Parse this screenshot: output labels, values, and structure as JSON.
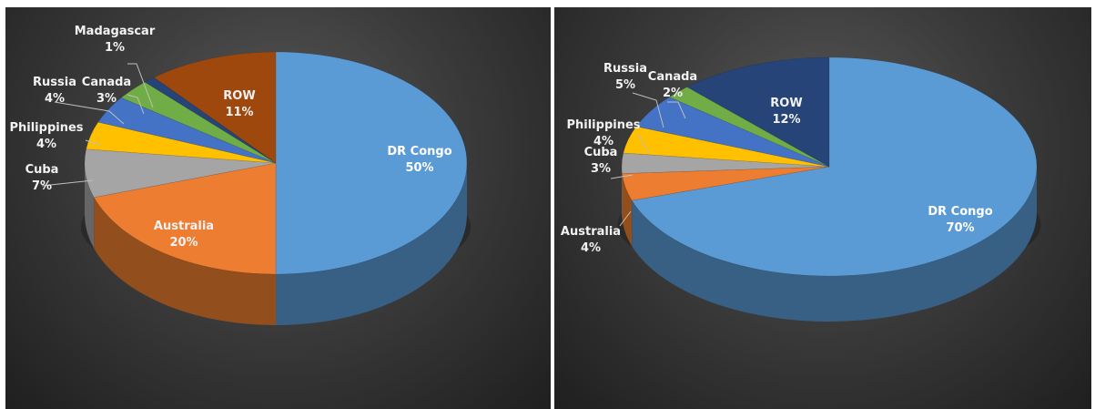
{
  "chart_data": [
    {
      "type": "pie",
      "style": "3d",
      "slices": [
        {
          "name": "DR Congo",
          "value": 50,
          "label": "50%",
          "color": "#5b9bd5"
        },
        {
          "name": "Australia",
          "value": 20,
          "label": "20%",
          "color": "#ed7d31"
        },
        {
          "name": "Cuba",
          "value": 7,
          "label": "7%",
          "color": "#a5a5a5"
        },
        {
          "name": "Philippines",
          "value": 4,
          "label": "4%",
          "color": "#ffc000"
        },
        {
          "name": "Russia",
          "value": 4,
          "label": "4%",
          "color": "#4472c4"
        },
        {
          "name": "Canada",
          "value": 3,
          "label": "3%",
          "color": "#70ad47"
        },
        {
          "name": "Madagascar",
          "value": 1,
          "label": "1%",
          "color": "#264478"
        },
        {
          "name": "ROW",
          "value": 11,
          "label": "11%",
          "color": "#9e480e"
        }
      ]
    },
    {
      "type": "pie",
      "style": "3d",
      "slices": [
        {
          "name": "DR Congo",
          "value": 70,
          "label": "70%",
          "color": "#5b9bd5"
        },
        {
          "name": "Australia",
          "value": 4,
          "label": "4%",
          "color": "#ed7d31"
        },
        {
          "name": "Cuba",
          "value": 3,
          "label": "3%",
          "color": "#a5a5a5"
        },
        {
          "name": "Philippines",
          "value": 4,
          "label": "4%",
          "color": "#ffc000"
        },
        {
          "name": "Russia",
          "value": 5,
          "label": "5%",
          "color": "#4472c4"
        },
        {
          "name": "Canada",
          "value": 2,
          "label": "2%",
          "color": "#70ad47"
        },
        {
          "name": "ROW",
          "value": 12,
          "label": "12%",
          "color": "#264478"
        }
      ]
    }
  ]
}
